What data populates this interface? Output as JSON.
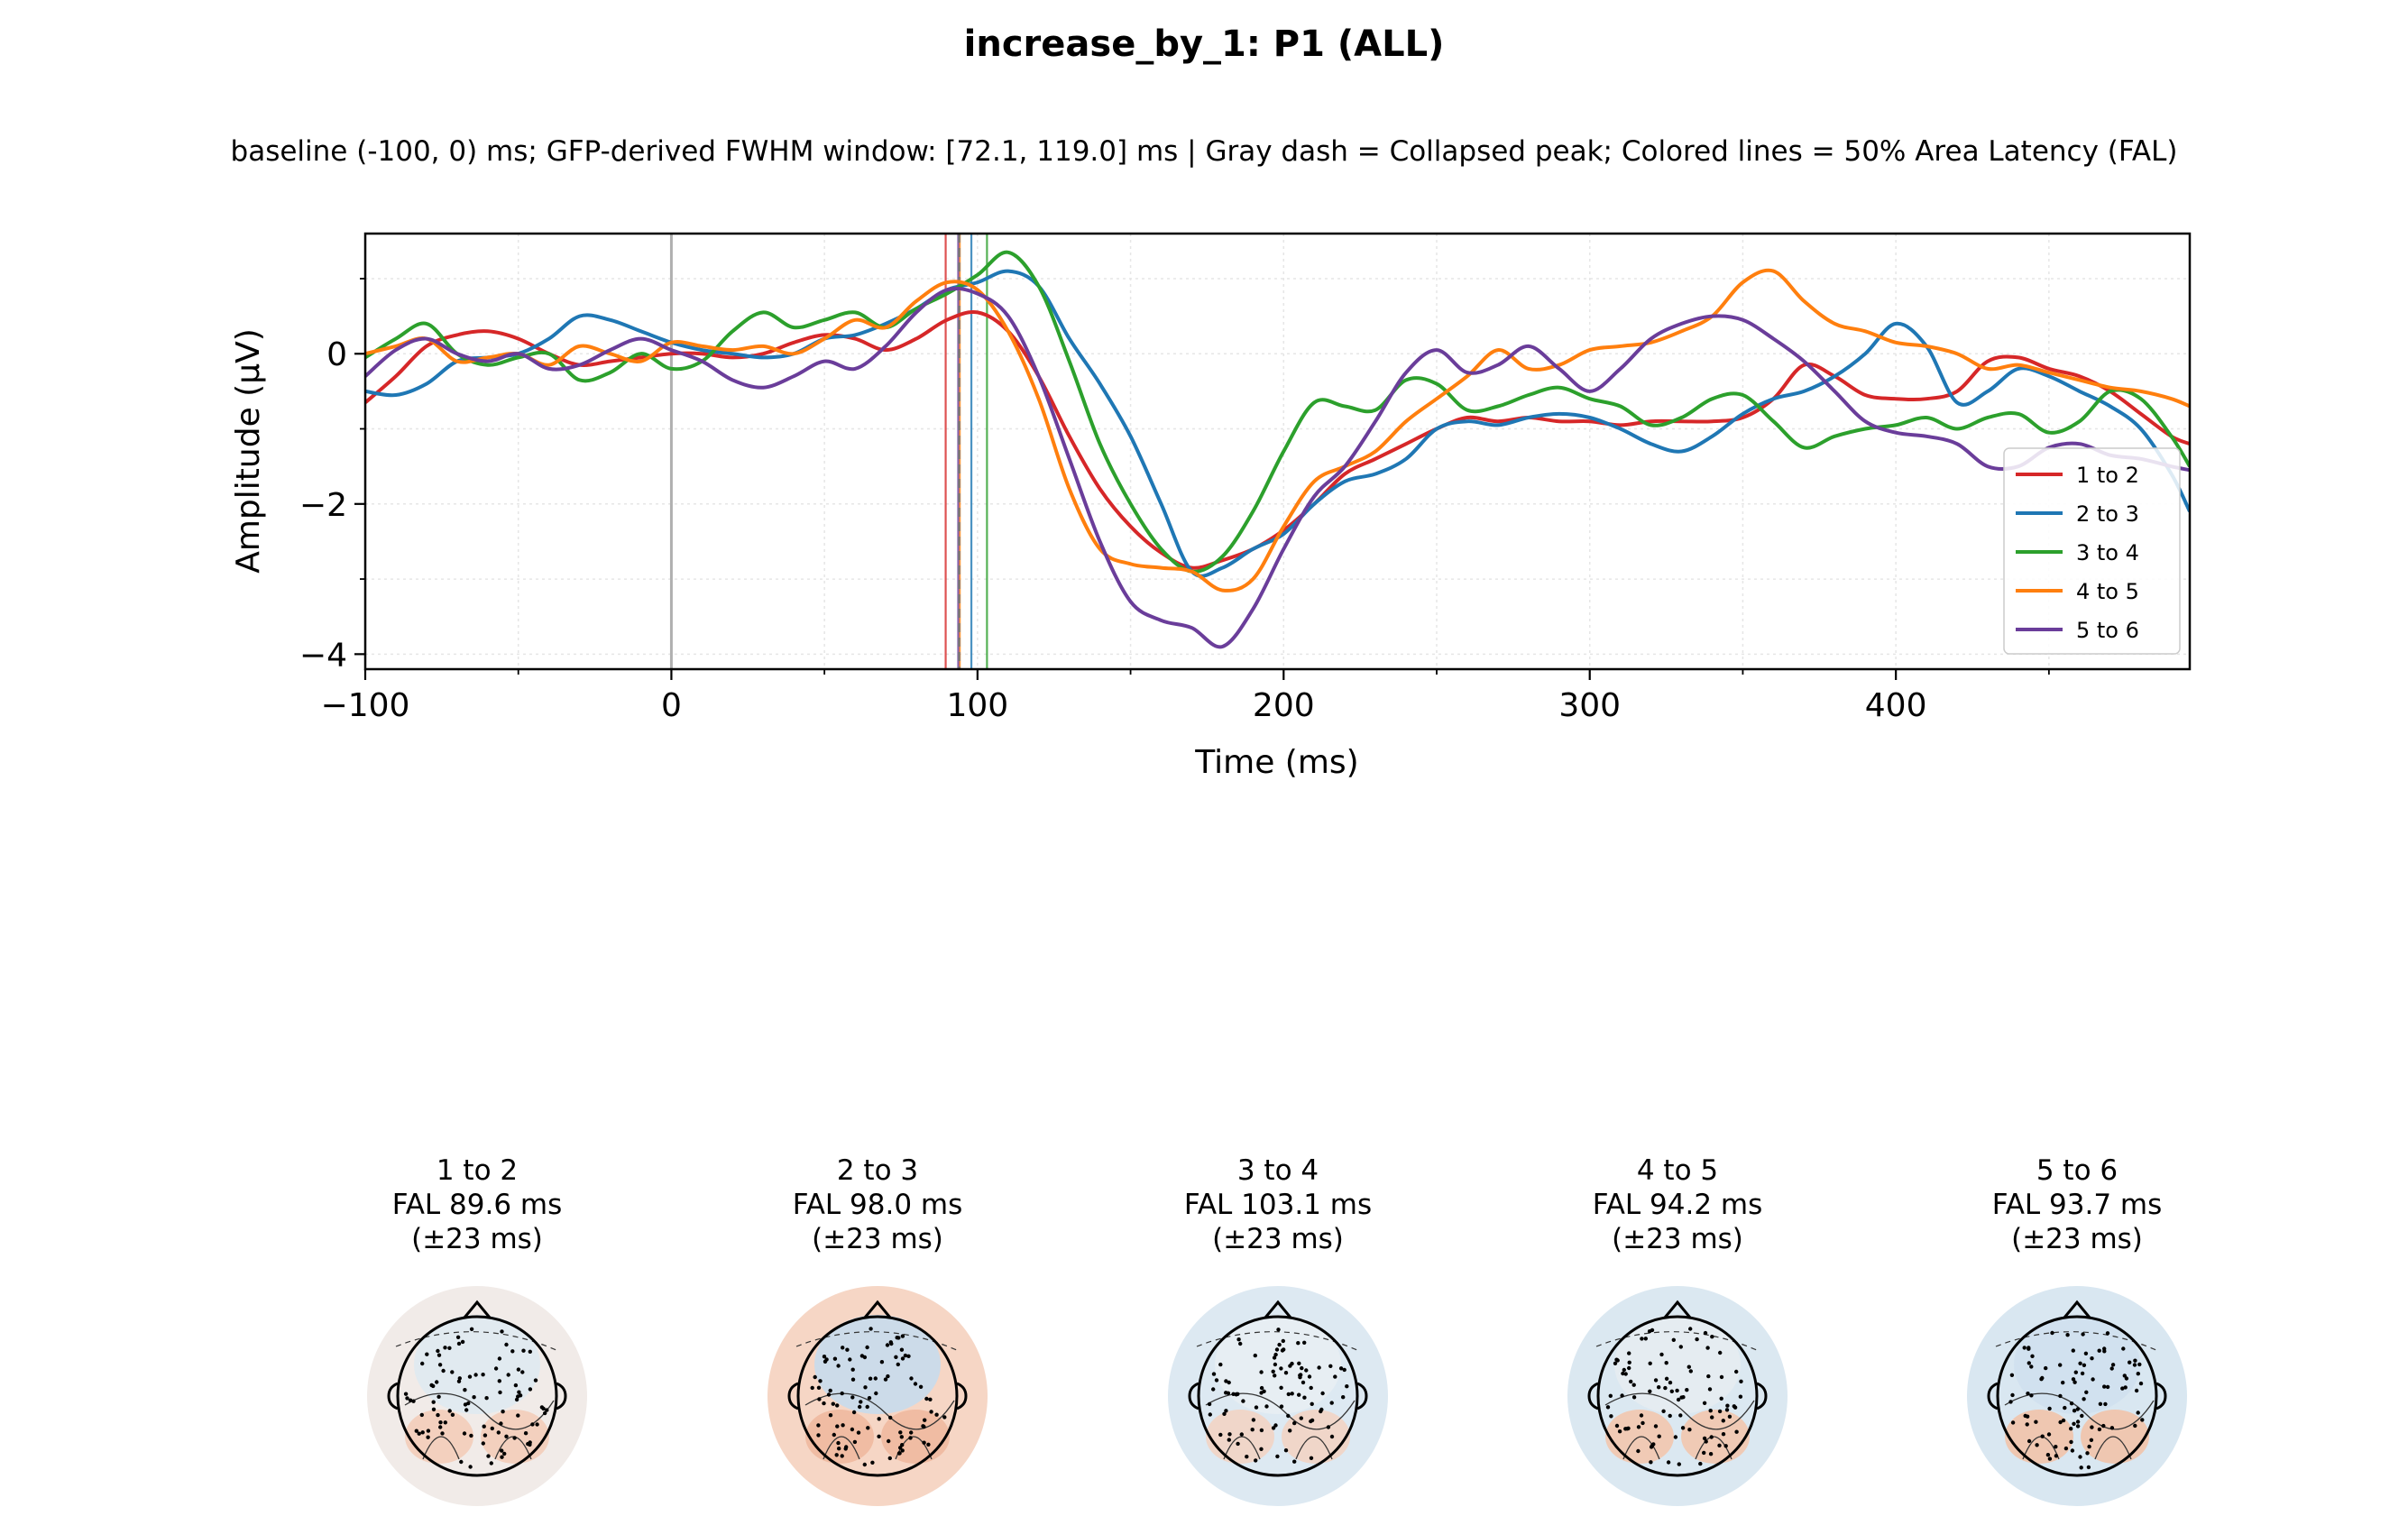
{
  "chart_data": {
    "type": "line",
    "title": "increase_by_1: P1 (ALL)",
    "subtitle": "baseline (-100, 0) ms; GFP-derived FWHM window: [72.1, 119.0] ms | Gray dash = Collapsed peak; Colored lines = 50% Area Latency (FAL)",
    "xlabel": "Time (ms)",
    "ylabel": "Amplitude (μV)",
    "xlim": [
      -100,
      496
    ],
    "ylim": [
      -4.2,
      1.6
    ],
    "xticks": [
      -100,
      0,
      100,
      200,
      300,
      400
    ],
    "yticks": [
      0,
      -2,
      -4
    ],
    "grid": true,
    "legend_position": "lower-right",
    "baseline_marker_x": 0,
    "collapsed_peak_x": 94,
    "series": [
      {
        "name": "1 to 2",
        "color": "#d62728",
        "fal": 89.6,
        "x": [
          -100,
          -90,
          -80,
          -70,
          -60,
          -50,
          -40,
          -30,
          -20,
          -10,
          0,
          10,
          20,
          30,
          40,
          50,
          60,
          70,
          80,
          90,
          100,
          110,
          120,
          130,
          140,
          150,
          160,
          170,
          180,
          190,
          200,
          210,
          220,
          230,
          240,
          250,
          260,
          270,
          280,
          290,
          300,
          310,
          320,
          330,
          340,
          350,
          360,
          370,
          380,
          390,
          400,
          410,
          420,
          430,
          440,
          450,
          460,
          470,
          480,
          490,
          496
        ],
        "y": [
          -0.65,
          -0.3,
          0.1,
          0.25,
          0.3,
          0.2,
          0.0,
          -0.15,
          -0.1,
          -0.05,
          0.0,
          0.0,
          -0.05,
          0.0,
          0.15,
          0.25,
          0.2,
          0.05,
          0.2,
          0.45,
          0.55,
          0.3,
          -0.3,
          -1.1,
          -1.8,
          -2.3,
          -2.65,
          -2.85,
          -2.75,
          -2.6,
          -2.35,
          -2.0,
          -1.6,
          -1.4,
          -1.2,
          -1.0,
          -0.85,
          -0.9,
          -0.85,
          -0.9,
          -0.9,
          -0.95,
          -0.9,
          -0.9,
          -0.9,
          -0.85,
          -0.6,
          -0.15,
          -0.3,
          -0.55,
          -0.6,
          -0.6,
          -0.5,
          -0.1,
          -0.05,
          -0.2,
          -0.3,
          -0.5,
          -0.8,
          -1.1,
          -1.2
        ]
      },
      {
        "name": "2 to 3",
        "color": "#1f77b4",
        "fal": 98.0,
        "x": [
          -100,
          -90,
          -80,
          -70,
          -60,
          -50,
          -40,
          -30,
          -20,
          -10,
          0,
          10,
          20,
          30,
          40,
          50,
          60,
          70,
          80,
          90,
          100,
          110,
          120,
          130,
          140,
          150,
          160,
          170,
          180,
          190,
          200,
          210,
          220,
          230,
          240,
          250,
          260,
          270,
          280,
          290,
          300,
          310,
          320,
          330,
          340,
          350,
          360,
          370,
          380,
          390,
          400,
          410,
          420,
          430,
          440,
          450,
          460,
          470,
          480,
          490,
          496
        ],
        "y": [
          -0.5,
          -0.55,
          -0.4,
          -0.1,
          -0.05,
          0.0,
          0.2,
          0.5,
          0.45,
          0.3,
          0.15,
          0.05,
          0.0,
          -0.05,
          0.0,
          0.2,
          0.25,
          0.4,
          0.6,
          0.85,
          0.95,
          1.1,
          0.9,
          0.2,
          -0.4,
          -1.1,
          -2.0,
          -2.9,
          -2.85,
          -2.6,
          -2.4,
          -2.0,
          -1.7,
          -1.6,
          -1.4,
          -1.0,
          -0.9,
          -0.95,
          -0.85,
          -0.8,
          -0.85,
          -1.0,
          -1.2,
          -1.3,
          -1.1,
          -0.8,
          -0.6,
          -0.5,
          -0.3,
          0.0,
          0.4,
          0.1,
          -0.65,
          -0.5,
          -0.2,
          -0.3,
          -0.5,
          -0.7,
          -1.0,
          -1.6,
          -2.1
        ]
      },
      {
        "name": "3 to 4",
        "color": "#2ca02c",
        "fal": 103.1,
        "x": [
          -100,
          -90,
          -80,
          -70,
          -60,
          -50,
          -40,
          -30,
          -20,
          -10,
          0,
          10,
          20,
          30,
          40,
          50,
          60,
          70,
          80,
          90,
          100,
          110,
          120,
          130,
          140,
          150,
          160,
          170,
          180,
          190,
          200,
          210,
          220,
          230,
          240,
          250,
          260,
          270,
          280,
          290,
          300,
          310,
          320,
          330,
          340,
          350,
          360,
          370,
          380,
          390,
          400,
          410,
          420,
          430,
          440,
          450,
          460,
          470,
          480,
          490,
          496
        ],
        "y": [
          -0.05,
          0.2,
          0.4,
          0.0,
          -0.15,
          -0.05,
          0.0,
          -0.35,
          -0.25,
          0.0,
          -0.2,
          -0.1,
          0.3,
          0.55,
          0.35,
          0.45,
          0.55,
          0.35,
          0.6,
          0.8,
          1.05,
          1.35,
          0.9,
          -0.1,
          -1.2,
          -2.0,
          -2.6,
          -2.9,
          -2.7,
          -2.1,
          -1.3,
          -0.65,
          -0.7,
          -0.75,
          -0.35,
          -0.4,
          -0.75,
          -0.7,
          -0.55,
          -0.45,
          -0.6,
          -0.7,
          -0.95,
          -0.85,
          -0.6,
          -0.55,
          -0.9,
          -1.25,
          -1.1,
          -1.0,
          -0.95,
          -0.85,
          -1.0,
          -0.85,
          -0.8,
          -1.05,
          -0.9,
          -0.5,
          -0.6,
          -1.1,
          -1.5
        ]
      },
      {
        "name": "4 to 5",
        "color": "#ff7f0e",
        "fal": 94.2,
        "x": [
          -100,
          -90,
          -80,
          -70,
          -60,
          -50,
          -40,
          -30,
          -20,
          -10,
          0,
          10,
          20,
          30,
          40,
          50,
          60,
          70,
          80,
          90,
          100,
          110,
          120,
          130,
          140,
          150,
          160,
          170,
          180,
          190,
          200,
          210,
          220,
          230,
          240,
          250,
          260,
          270,
          280,
          290,
          300,
          310,
          320,
          330,
          340,
          350,
          360,
          370,
          380,
          390,
          400,
          410,
          420,
          430,
          440,
          450,
          460,
          470,
          480,
          490,
          496
        ],
        "y": [
          0.0,
          0.1,
          0.2,
          -0.1,
          -0.05,
          0.0,
          -0.15,
          0.1,
          0.0,
          -0.1,
          0.15,
          0.1,
          0.05,
          0.1,
          0.0,
          0.2,
          0.45,
          0.35,
          0.7,
          0.95,
          0.85,
          0.3,
          -0.6,
          -1.8,
          -2.6,
          -2.8,
          -2.85,
          -2.9,
          -3.15,
          -3.0,
          -2.3,
          -1.7,
          -1.5,
          -1.3,
          -0.9,
          -0.6,
          -0.3,
          0.05,
          -0.2,
          -0.15,
          0.05,
          0.1,
          0.15,
          0.3,
          0.5,
          0.95,
          1.1,
          0.7,
          0.4,
          0.3,
          0.15,
          0.1,
          0.0,
          -0.2,
          -0.15,
          -0.25,
          -0.35,
          -0.45,
          -0.5,
          -0.6,
          -0.7
        ]
      },
      {
        "name": "5 to 6",
        "color": "#6a3d9a",
        "fal": 93.7,
        "x": [
          -100,
          -90,
          -80,
          -70,
          -60,
          -50,
          -40,
          -30,
          -20,
          -10,
          0,
          10,
          20,
          30,
          40,
          50,
          60,
          70,
          80,
          90,
          100,
          110,
          120,
          130,
          140,
          150,
          160,
          170,
          180,
          190,
          200,
          210,
          220,
          230,
          240,
          250,
          260,
          270,
          280,
          290,
          300,
          310,
          320,
          330,
          340,
          350,
          360,
          370,
          380,
          390,
          400,
          410,
          420,
          430,
          440,
          450,
          460,
          470,
          480,
          490,
          496
        ],
        "y": [
          -0.3,
          0.05,
          0.2,
          0.0,
          -0.1,
          0.0,
          -0.2,
          -0.15,
          0.05,
          0.2,
          0.05,
          -0.1,
          -0.35,
          -0.45,
          -0.3,
          -0.1,
          -0.2,
          0.1,
          0.55,
          0.85,
          0.8,
          0.5,
          -0.3,
          -1.4,
          -2.5,
          -3.3,
          -3.55,
          -3.65,
          -3.9,
          -3.4,
          -2.6,
          -1.9,
          -1.5,
          -0.9,
          -0.25,
          0.05,
          -0.25,
          -0.15,
          0.1,
          -0.2,
          -0.5,
          -0.2,
          0.2,
          0.4,
          0.5,
          0.45,
          0.2,
          -0.1,
          -0.5,
          -0.9,
          -1.05,
          -1.1,
          -1.2,
          -1.5,
          -1.5,
          -1.25,
          -1.2,
          -1.35,
          -1.4,
          -1.5,
          -1.55
        ]
      }
    ],
    "topomaps": [
      {
        "name": "1 to 2",
        "fal_label": "FAL 89.6 ms",
        "err_label": "(±23 ms)"
      },
      {
        "name": "2 to 3",
        "fal_label": "FAL 98.0 ms",
        "err_label": "(±23 ms)"
      },
      {
        "name": "3 to 4",
        "fal_label": "FAL 103.1 ms",
        "err_label": "(±23 ms)"
      },
      {
        "name": "4 to 5",
        "fal_label": "FAL 94.2 ms",
        "err_label": "(±23 ms)"
      },
      {
        "name": "5 to 6",
        "fal_label": "FAL 93.7 ms",
        "err_label": "(±23 ms)"
      }
    ]
  }
}
